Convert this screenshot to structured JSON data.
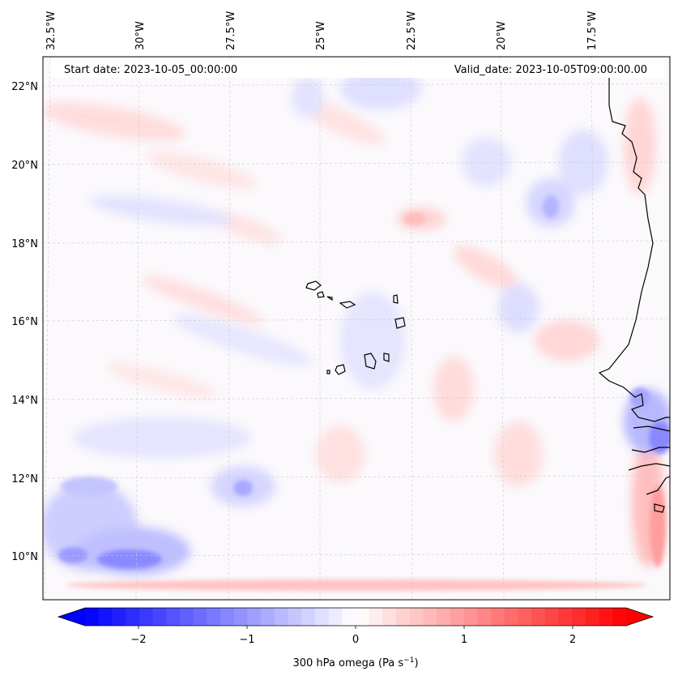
{
  "map": {
    "start_label": "Start date: 2023-10-05_00:00:00",
    "valid_label": "Valid_date: 2023-10-05T09:00:00.00",
    "lon_labels": [
      "32.5°W",
      "30°W",
      "27.5°W",
      "25°W",
      "22.5°W",
      "20°W",
      "17.5°W"
    ],
    "lat_labels": [
      "22°N",
      "20°N",
      "18°N",
      "16°N",
      "14°N",
      "12°N",
      "10°N"
    ]
  },
  "colorbar": {
    "ticks": [
      "−2",
      "−1",
      "0",
      "1",
      "2"
    ],
    "label_main": "300 hPa omega (Pa s",
    "label_sup": "−1",
    "label_end": ")",
    "range": [
      -2.75,
      2.75
    ],
    "colors": {
      "low": "#0000ff",
      "mid": "#ffffff",
      "high": "#ff0000"
    }
  }
}
